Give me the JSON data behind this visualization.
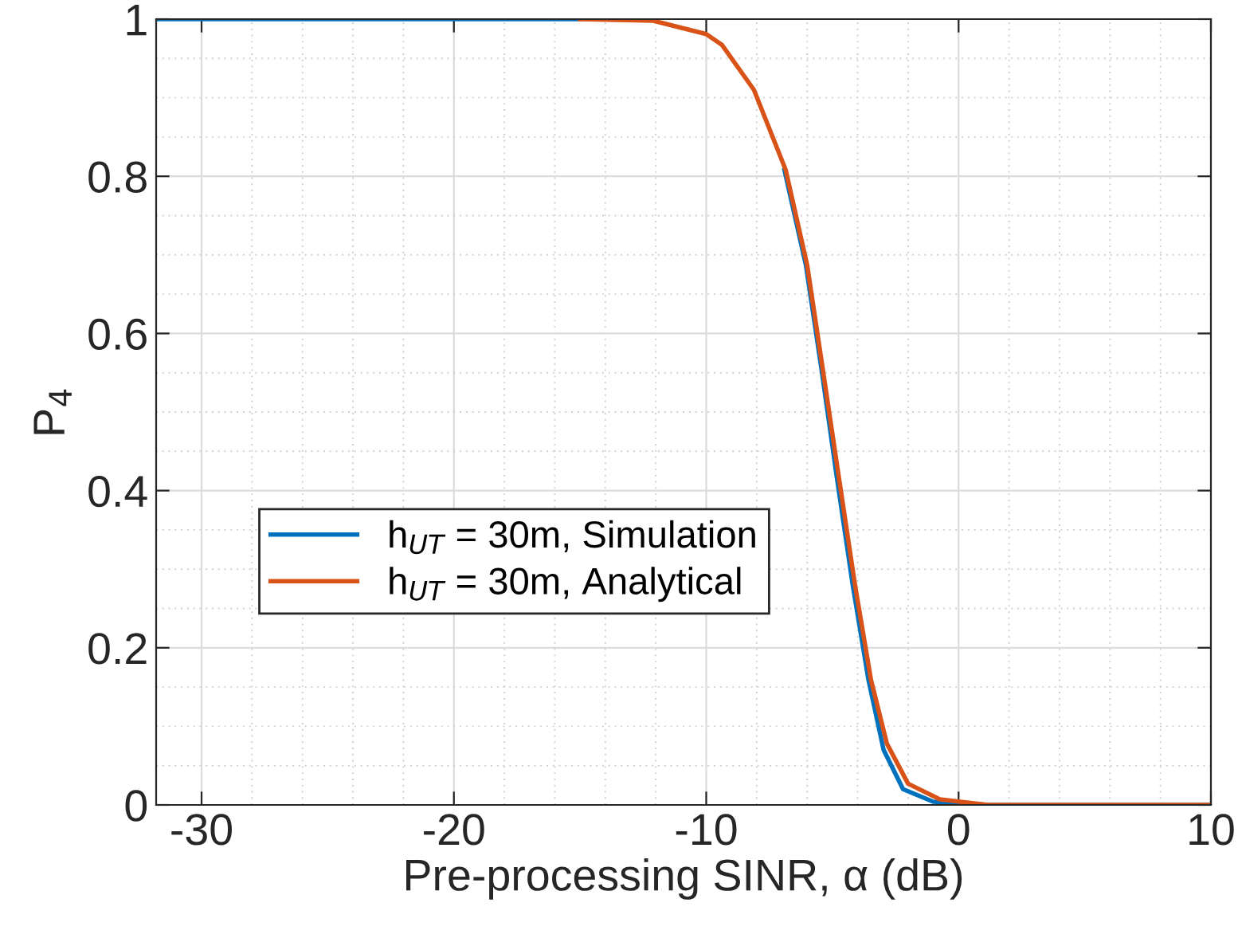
{
  "chart_data": {
    "type": "line",
    "xlabel": "Pre-processing SINR, α (dB)",
    "ylabel": "P$_{4}$",
    "xlim": [
      -31.8,
      10
    ],
    "ylim": [
      0,
      1
    ],
    "xticks": [
      -30,
      -20,
      -10,
      0,
      10
    ],
    "yticks": [
      0,
      {
        "value": 0.2,
        "label": "0.2"
      },
      {
        "value": 0.4,
        "label": "0.4"
      },
      {
        "value": 0.6,
        "label": "0.6"
      },
      {
        "value": 0.8,
        "label": "0.8"
      },
      1
    ],
    "grid": true,
    "legend": "left",
    "line_style": "solid",
    "marker": "none",
    "series": [
      {
        "name": "h$_{UT}$ = 30m, Simulation",
        "color": "#0072bd",
        "x": [
          -31.8,
          -15,
          -12.1,
          -10,
          -9.37,
          -8.11,
          -6.9,
          -6.05,
          -5.42,
          -4.82,
          -4.2,
          -3.57,
          -2.97,
          -2.2,
          -1.0,
          1.16,
          10
        ],
        "values": [
          1,
          1,
          null,
          null,
          null,
          null,
          0.808,
          0.687,
          0.552,
          0.416,
          0.281,
          0.159,
          0.07,
          0.02,
          0.004,
          0,
          0
        ]
      },
      {
        "name": "h$_{UT}$ = 30m, Analytical",
        "color": "#d95319",
        "x": [
          -15,
          -12.1,
          -10,
          -9.37,
          -8.11,
          -6.85,
          -6.0,
          -5.37,
          -4.74,
          -4.11,
          -3.47,
          -2.84,
          -2.0,
          -0.74,
          1.16,
          10
        ],
        "values": [
          1,
          0.998,
          0.981,
          0.967,
          0.91,
          0.808,
          0.687,
          0.552,
          0.416,
          0.281,
          0.159,
          0.078,
          0.027,
          0.007,
          0,
          0
        ]
      }
    ]
  }
}
